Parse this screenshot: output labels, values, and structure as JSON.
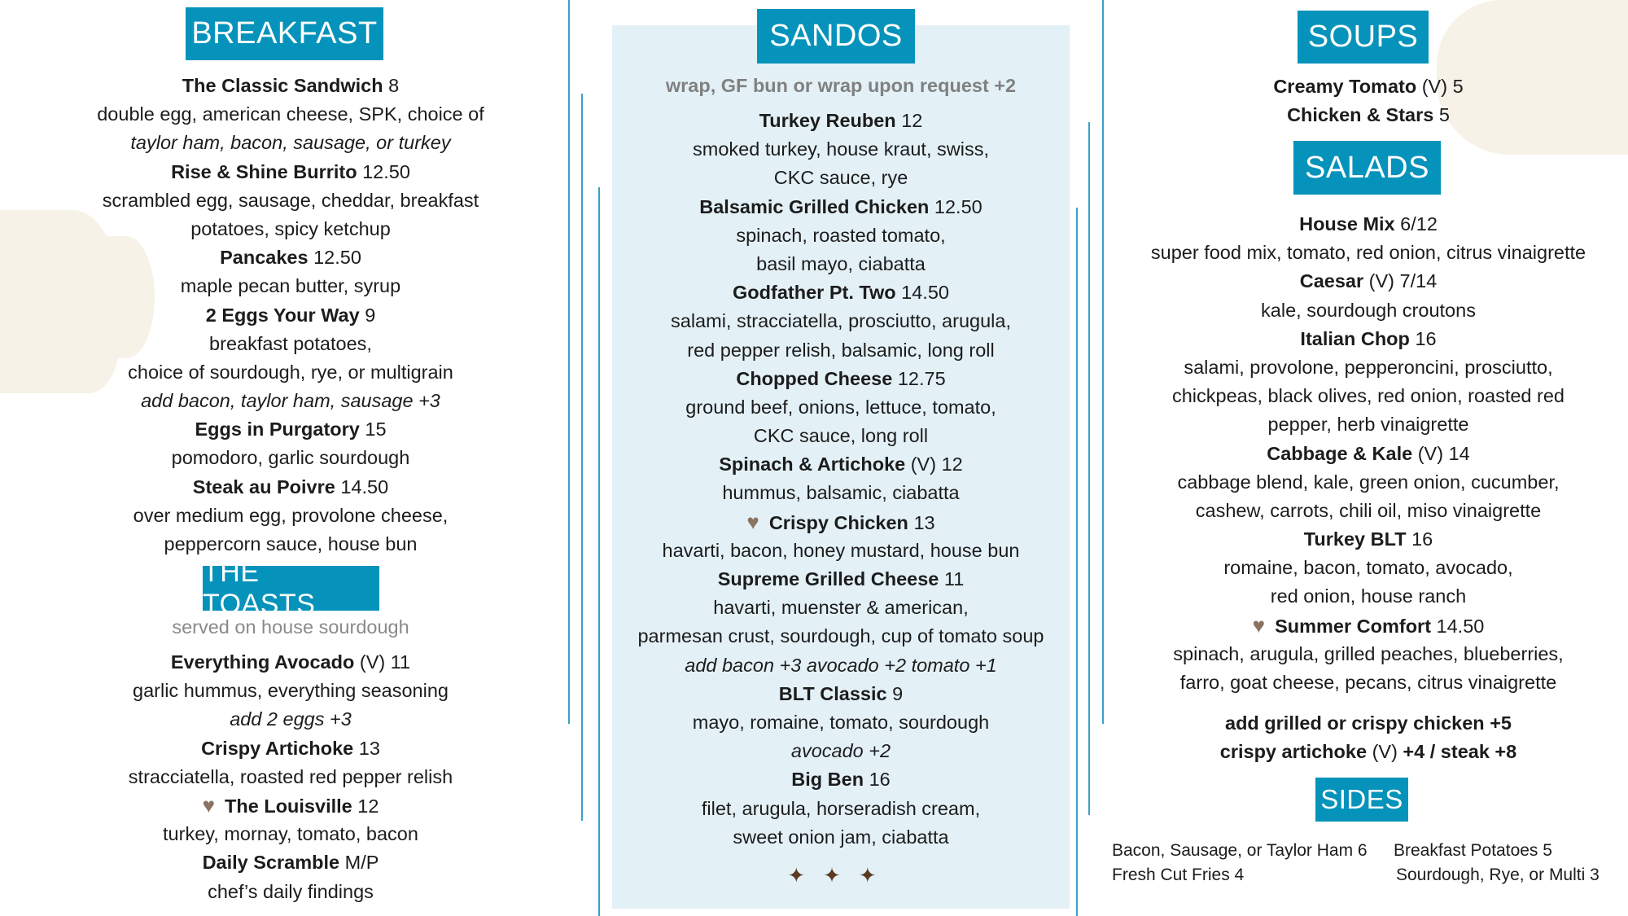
{
  "colors": {
    "accent": "#0593bb",
    "panel": "#e3f1f7",
    "heart": "#8b7363",
    "stars": "#5b3a22"
  },
  "breakfast": {
    "title": "BREAKFAST",
    "lines": [
      {
        "name": "The Classic  Sandwich",
        "price": "8"
      },
      {
        "text": "double egg, american cheese, SPK, choice of"
      },
      {
        "text": "taylor ham, bacon, sausage, or turkey",
        "italic": true
      },
      {
        "name": "Rise & Shine Burrito",
        "price": "12.50"
      },
      {
        "text": "scrambled egg, sausage, cheddar, breakfast"
      },
      {
        "text": "potatoes, spicy ketchup"
      },
      {
        "name": "Pancakes",
        "price": "12.50"
      },
      {
        "text": "maple pecan butter, syrup"
      },
      {
        "name": "2 Eggs Your Way",
        "price": "9"
      },
      {
        "text": "breakfast potatoes,"
      },
      {
        "text": "choice of sourdough, rye, or multigrain"
      },
      {
        "text": "add bacon, taylor ham, sausage +3",
        "italic": true
      },
      {
        "name": "Eggs in Purgatory",
        "price": "15"
      },
      {
        "text": "pomodoro, garlic sourdough"
      },
      {
        "name": "Steak au Poivre",
        "price": "14.50"
      },
      {
        "text": "over medium egg, provolone cheese,"
      },
      {
        "text": "peppercorn sauce, house bun"
      }
    ]
  },
  "toasts": {
    "title": "THE TOASTS",
    "subtitle": "served on house sourdough",
    "lines": [
      {
        "name": "Everything Avocado",
        "tag": "(V)",
        "price": "11"
      },
      {
        "text": "garlic hummus, everything seasoning"
      },
      {
        "text": "add 2 eggs +3",
        "italic": true
      },
      {
        "name": "Crispy Artichoke",
        "price": "13"
      },
      {
        "text": "stracciatella, roasted red pepper relish"
      },
      {
        "name": "The Louisville",
        "price": "12",
        "heart": true
      },
      {
        "text": "turkey, mornay, tomato, bacon"
      },
      {
        "name": "Daily Scramble",
        "price": "M/P"
      },
      {
        "text": "chef’s daily findings"
      }
    ]
  },
  "sandos": {
    "title": "SANDOS",
    "subtitle": "wrap, GF bun or wrap upon request +2",
    "lines": [
      {
        "name": "Turkey Reuben",
        "price": "12"
      },
      {
        "text": "smoked turkey, house kraut, swiss,"
      },
      {
        "text": "CKC sauce, rye"
      },
      {
        "name": "Balsamic Grilled Chicken",
        "price": "12.50"
      },
      {
        "text": "spinach, roasted tomato,"
      },
      {
        "text": "basil mayo, ciabatta"
      },
      {
        "name": "Godfather Pt. Two",
        "price": "14.50"
      },
      {
        "text": "salami, stracciatella, prosciutto, arugula,"
      },
      {
        "text": "red pepper relish, balsamic, long roll"
      },
      {
        "name": "Chopped Cheese",
        "price": "12.75"
      },
      {
        "text": "ground beef, onions, lettuce, tomato,"
      },
      {
        "text": "CKC sauce, long roll"
      },
      {
        "name": "Spinach & Artichoke",
        "tag": "(V)",
        "price": "12"
      },
      {
        "text": "hummus, balsamic, ciabatta"
      },
      {
        "name": "Crispy Chicken",
        "price": "13",
        "heart": true
      },
      {
        "text": "havarti, bacon, honey mustard, house bun"
      },
      {
        "name": "Supreme Grilled Cheese",
        "price": "11"
      },
      {
        "text": "havarti, muenster & american,"
      },
      {
        "text": "parmesan crust, sourdough, cup of tomato soup"
      },
      {
        "text": "add bacon +3 avocado +2 tomato +1",
        "italic": true
      },
      {
        "name": "BLT Classic",
        "price": "9"
      },
      {
        "text": "mayo, romaine, tomato, sourdough"
      },
      {
        "text": "avocado +2",
        "italic": true
      },
      {
        "name": "Big Ben",
        "price": "16"
      },
      {
        "text": "filet, arugula, horseradish cream,"
      },
      {
        "text": "sweet onion jam, ciabatta"
      }
    ],
    "stars": "✦✦✦"
  },
  "soups": {
    "title": "SOUPS",
    "lines": [
      {
        "name": "Creamy Tomato",
        "tag": "(V)",
        "price": "5"
      },
      {
        "name": "Chicken & Stars",
        "price": "5"
      }
    ]
  },
  "salads": {
    "title": "SALADS",
    "lines": [
      {
        "name": "House Mix",
        "price": "6/12"
      },
      {
        "text": "super food mix, tomato, red onion, citrus vinaigrette"
      },
      {
        "name": "Caesar",
        "tag": "(V)",
        "price": "7/14"
      },
      {
        "text": "kale, sourdough croutons"
      },
      {
        "name": "Italian Chop",
        "price": "16"
      },
      {
        "text": "salami, provolone, pepperoncini, prosciutto,"
      },
      {
        "text": "chickpeas, black olives, red onion, roasted red"
      },
      {
        "text": "pepper, herb vinaigrette"
      },
      {
        "name": "Cabbage & Kale",
        "tag": "(V)",
        "price": "14"
      },
      {
        "text": "cabbage blend, kale, green onion, cucumber,"
      },
      {
        "text": "cashew, carrots, chili oil, miso vinaigrette"
      },
      {
        "name": "Turkey BLT",
        "price": "16"
      },
      {
        "text": "romaine, bacon, tomato, avocado,"
      },
      {
        "text": "red onion, house ranch"
      },
      {
        "name": "Summer Comfort",
        "price": "14.50",
        "heart": true
      },
      {
        "text": "spinach, arugula, grilled peaches, blueberries,"
      },
      {
        "text": "farro, goat cheese, pecans, citrus vinaigrette"
      }
    ],
    "addons": [
      {
        "name": "add grilled or crispy chicken +5"
      },
      {
        "name": "crispy artichoke",
        "tag": "(V)",
        "price": "+4 / steak +8",
        "price_bold": true
      }
    ]
  },
  "sides": {
    "title": "SIDES",
    "items": [
      "Bacon, Sausage, or Taylor Ham 6",
      "Breakfast Potatoes 5",
      "Fresh Cut Fries 4",
      "Sourdough, Rye, or Multi 3"
    ]
  }
}
